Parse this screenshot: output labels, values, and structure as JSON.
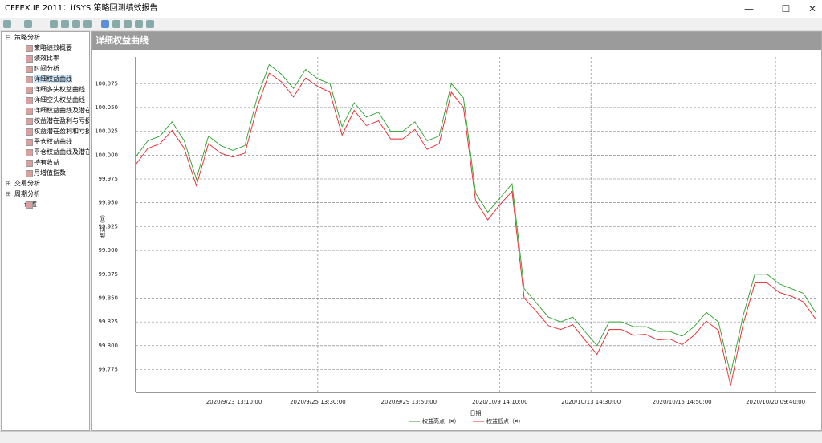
{
  "window": {
    "title": "CFFEX.IF 2011：ifSYS 策略回测绩效报告"
  },
  "tree": {
    "groups": [
      {
        "label": "策略分析",
        "items": [
          "策略绩效概要",
          "绩效比率",
          "时间分析",
          "详细权益曲线",
          "详细多头权益曲线",
          "详细空头权益曲线",
          "详细权益曲线及潜在",
          "权益潜在盈利与亏损",
          "权益潜在盈利和亏损",
          "平仓权益曲线",
          "平仓权益曲线及潜在",
          "持有收益",
          "月增值指数"
        ]
      },
      {
        "label": "交易分析",
        "items": []
      },
      {
        "label": "周期分析",
        "items": []
      },
      {
        "label": "设置",
        "items": []
      }
    ]
  },
  "panel": {
    "title": "详细权益曲线"
  },
  "chart_data": {
    "type": "line",
    "xlabel": "日期",
    "ylabel": "权益（¤）",
    "grid": true,
    "x": [
      0,
      1,
      2,
      3,
      4,
      5,
      6,
      7,
      8,
      9,
      10,
      11,
      12,
      13,
      14,
      15,
      16,
      17,
      18,
      19,
      20,
      21,
      22,
      23,
      24,
      25,
      26,
      27,
      28,
      29,
      30,
      31,
      32,
      33,
      34,
      35,
      36,
      37,
      38,
      39,
      40,
      41,
      42,
      43,
      44,
      45,
      46,
      47,
      48,
      49,
      50,
      51,
      52,
      53,
      54,
      55,
      56
    ],
    "xlim": [
      0,
      56
    ],
    "xticks": [
      {
        "value": 8.1,
        "label": "2020/9/23 13:10:00"
      },
      {
        "value": 15,
        "label": "2020/9/25 13:30:00"
      },
      {
        "value": 22.5,
        "label": "2020/9/29 13:50:00"
      },
      {
        "value": 30,
        "label": "2020/10/9 14:10:00"
      },
      {
        "value": 37.5,
        "label": "2020/10/13 14:30:00"
      },
      {
        "value": 45,
        "label": "2020/10/15 14:50:00"
      },
      {
        "value": 52.7,
        "label": "2020/10/20 09:40:00"
      }
    ],
    "ylim": [
      99.751,
      100.103
    ],
    "yticks": [
      100.075,
      {
        "value": 100.05,
        "label": "100.050"
      },
      100.025,
      {
        "value": 100,
        "label": "100.000"
      },
      99.975,
      {
        "value": 99.95,
        "label": "99.950"
      },
      99.925,
      {
        "value": 99.9,
        "label": "99.900"
      },
      99.875,
      {
        "value": 99.85,
        "label": "99.850"
      },
      99.825,
      {
        "value": 99.8,
        "label": "99.800"
      },
      99.775
    ],
    "legend": "bottom",
    "series": [
      {
        "name": "权益高点（¤）",
        "color": "#2ca02c",
        "values": [
          99.998,
          100.015,
          100.02,
          100.035,
          100.015,
          99.975,
          100.02,
          100.01,
          100.005,
          100.01,
          100.06,
          100.095,
          100.085,
          100.07,
          100.09,
          100.08,
          100.075,
          100.03,
          100.055,
          100.04,
          100.045,
          100.025,
          100.025,
          100.035,
          100.015,
          100.02,
          100.075,
          100.06,
          99.96,
          99.94,
          99.955,
          99.97,
          99.86,
          99.845,
          99.83,
          99.825,
          99.83,
          99.815,
          99.8,
          99.825,
          99.825,
          99.82,
          99.82,
          99.815,
          99.815,
          99.81,
          99.82,
          99.835,
          99.825,
          99.77,
          99.83,
          99.875,
          99.875,
          99.865,
          99.86,
          99.855,
          99.835
        ]
      },
      {
        "name": "权益低点（¤）",
        "color": "#e8262a",
        "values": [
          99.99,
          100.007,
          100.012,
          100.026,
          100.007,
          99.968,
          100.012,
          100.002,
          99.998,
          100.002,
          100.05,
          100.086,
          100.077,
          100.061,
          100.081,
          100.072,
          100.066,
          100.021,
          100.047,
          100.031,
          100.036,
          100.017,
          100.017,
          100.027,
          100.006,
          100.012,
          100.066,
          100.05,
          99.952,
          99.932,
          99.948,
          99.962,
          99.85,
          99.836,
          99.821,
          99.817,
          99.822,
          99.806,
          99.791,
          99.817,
          99.817,
          99.811,
          99.812,
          99.806,
          99.807,
          99.801,
          99.811,
          99.826,
          99.816,
          99.758,
          99.821,
          99.866,
          99.866,
          99.856,
          99.852,
          99.846,
          99.828
        ]
      }
    ]
  }
}
